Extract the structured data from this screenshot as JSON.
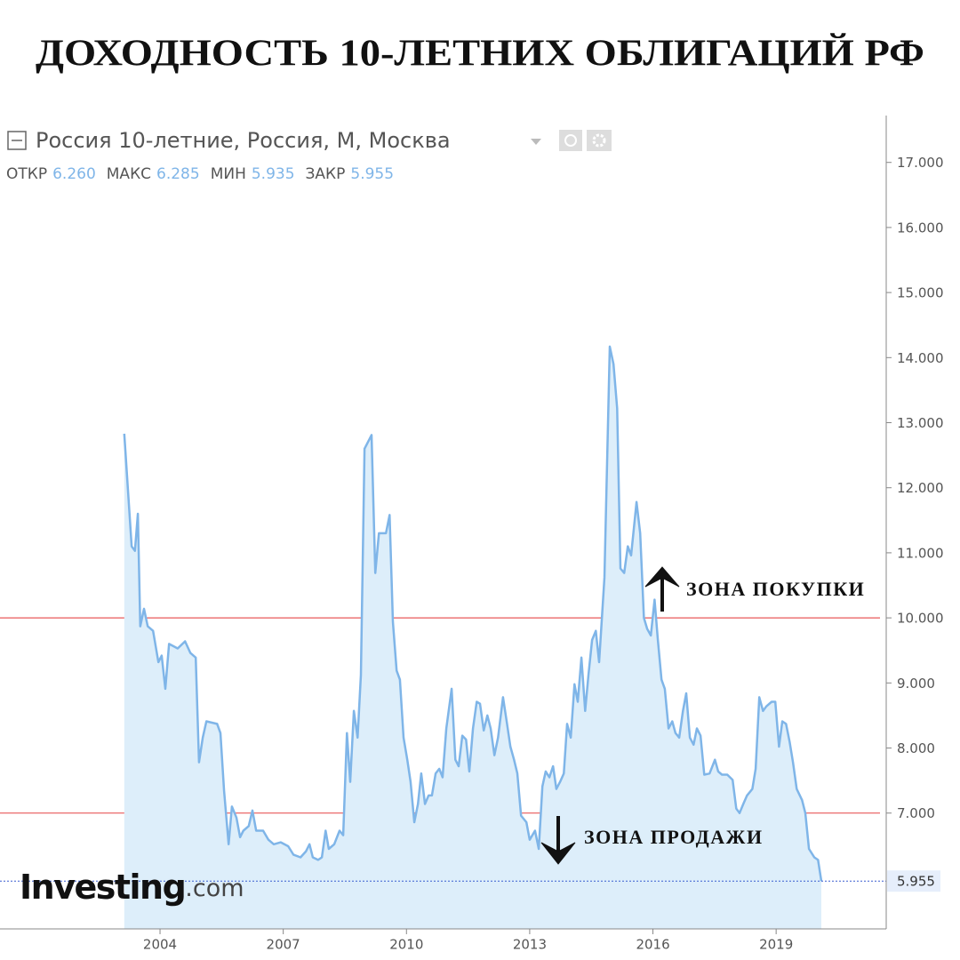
{
  "title": "ДОХОДНОСТЬ 10-ЛЕТНИХ ОБЛИГАЦИЙ РФ",
  "chart_data": {
    "type": "area",
    "ohlc": [
      {
        "label": "ОТКР",
        "value": "6.260"
      },
      {
        "label": "МАКС",
        "value": "6.285"
      },
      {
        "label": "МИН",
        "value": "5.935"
      },
      {
        "label": "ЗАКР",
        "value": "5.955"
      }
    ],
    "watermark": {
      "brand": "Investing",
      "suffix": ".com"
    },
    "xlim": [
      2000.104,
      2021.68
    ],
    "xticks": [
      2004,
      2007,
      2010,
      2013,
      2016,
      2019
    ],
    "ylim": [
      5.22,
      17.72
    ],
    "yticks": [
      {
        "value": 7,
        "label": "7.000"
      },
      {
        "value": 8,
        "label": "8.000"
      },
      {
        "value": 9,
        "label": "9.000"
      },
      {
        "value": 10,
        "label": "10.000"
      },
      {
        "value": 11,
        "label": "11.000"
      },
      {
        "value": 12,
        "label": "12.000"
      },
      {
        "value": 13,
        "label": "13.000"
      },
      {
        "value": 14,
        "label": "14.000"
      },
      {
        "value": 15,
        "label": "15.000"
      },
      {
        "value": 16,
        "label": "16.000"
      },
      {
        "value": 17,
        "label": "17.000"
      }
    ],
    "reference_lines": [
      {
        "value": 10,
        "color": "#e8595a",
        "annotation": "ЗОНА ПОКУПКИ"
      },
      {
        "value": 7,
        "color": "#e8595a",
        "annotation": "ЗОНА ПРОДАЖИ"
      }
    ],
    "series": [
      {
        "name": "Россия 10-летние, Россия, М, Москва",
        "color": "#7fb5e8",
        "fill": "#ddeefa",
        "x": [
          2003.13,
          2003.31,
          2003.39,
          2003.46,
          2003.52,
          2003.61,
          2003.7,
          2003.83,
          2003.96,
          2004.04,
          2004.13,
          2004.22,
          2004.43,
          2004.61,
          2004.74,
          2004.87,
          2004.95,
          2005.04,
          2005.13,
          2005.39,
          2005.47,
          2005.56,
          2005.67,
          2005.75,
          2005.86,
          2005.95,
          2006.03,
          2006.16,
          2006.25,
          2006.34,
          2006.51,
          2006.64,
          2006.77,
          2006.94,
          2007.12,
          2007.25,
          2007.42,
          2007.55,
          2007.64,
          2007.72,
          2007.85,
          2007.94,
          2008.03,
          2008.11,
          2008.24,
          2008.37,
          2008.46,
          2008.55,
          2008.63,
          2008.72,
          2008.81,
          2008.89,
          2008.98,
          2009.15,
          2009.24,
          2009.33,
          2009.5,
          2009.59,
          2009.67,
          2009.76,
          2009.84,
          2009.93,
          2010.02,
          2010.1,
          2010.19,
          2010.28,
          2010.36,
          2010.45,
          2010.54,
          2010.62,
          2010.71,
          2010.8,
          2010.88,
          2010.97,
          2011.1,
          2011.19,
          2011.27,
          2011.36,
          2011.45,
          2011.53,
          2011.62,
          2011.71,
          2011.79,
          2011.88,
          2011.97,
          2012.05,
          2012.14,
          2012.23,
          2012.35,
          2012.44,
          2012.53,
          2012.62,
          2012.7,
          2012.79,
          2012.92,
          2013.0,
          2013.13,
          2013.22,
          2013.31,
          2013.39,
          2013.48,
          2013.57,
          2013.65,
          2013.74,
          2013.83,
          2013.91,
          2014.0,
          2014.09,
          2014.17,
          2014.26,
          2014.35,
          2014.43,
          2014.52,
          2014.61,
          2014.69,
          2014.82,
          2014.95,
          2015.04,
          2015.13,
          2015.21,
          2015.3,
          2015.39,
          2015.47,
          2015.6,
          2015.69,
          2015.78,
          2015.86,
          2015.95,
          2016.04,
          2016.12,
          2016.21,
          2016.29,
          2016.38,
          2016.47,
          2016.55,
          2016.64,
          2016.73,
          2016.81,
          2016.9,
          2016.99,
          2017.07,
          2017.16,
          2017.25,
          2017.38,
          2017.51,
          2017.59,
          2017.68,
          2017.81,
          2017.94,
          2018.03,
          2018.11,
          2018.2,
          2018.29,
          2018.42,
          2018.5,
          2018.59,
          2018.68,
          2018.76,
          2018.89,
          2018.98,
          2019.07,
          2019.15,
          2019.24,
          2019.33,
          2019.41,
          2019.5,
          2019.63,
          2019.71,
          2019.8,
          2019.93,
          2020.02,
          2020.1
        ],
        "values": [
          12.83,
          11.1,
          11.03,
          11.6,
          9.87,
          10.14,
          9.87,
          9.8,
          9.32,
          9.42,
          8.91,
          9.6,
          9.53,
          9.64,
          9.46,
          9.39,
          7.78,
          8.16,
          8.41,
          8.37,
          8.23,
          7.34,
          6.52,
          7.1,
          6.93,
          6.63,
          6.73,
          6.8,
          7.04,
          6.73,
          6.73,
          6.59,
          6.52,
          6.55,
          6.49,
          6.36,
          6.32,
          6.41,
          6.52,
          6.32,
          6.28,
          6.32,
          6.73,
          6.45,
          6.52,
          6.73,
          6.66,
          8.23,
          7.48,
          8.57,
          8.16,
          9.12,
          12.6,
          12.81,
          10.69,
          11.3,
          11.3,
          11.58,
          9.94,
          9.19,
          9.05,
          8.16,
          7.82,
          7.48,
          6.86,
          7.14,
          7.61,
          7.14,
          7.27,
          7.27,
          7.61,
          7.68,
          7.55,
          8.3,
          8.91,
          7.82,
          7.72,
          8.19,
          8.13,
          7.64,
          8.3,
          8.71,
          8.68,
          8.27,
          8.5,
          8.3,
          7.89,
          8.16,
          8.78,
          8.41,
          8.02,
          7.82,
          7.61,
          6.96,
          6.86,
          6.59,
          6.73,
          6.45,
          7.41,
          7.64,
          7.55,
          7.72,
          7.37,
          7.48,
          7.61,
          8.37,
          8.16,
          8.98,
          8.71,
          9.39,
          8.57,
          9.12,
          9.66,
          9.8,
          9.32,
          10.62,
          14.17,
          13.9,
          13.22,
          10.76,
          10.69,
          11.1,
          10.96,
          11.78,
          11.3,
          10.0,
          9.83,
          9.73,
          10.28,
          9.66,
          9.05,
          8.91,
          8.3,
          8.41,
          8.23,
          8.16,
          8.57,
          8.84,
          8.16,
          8.05,
          8.3,
          8.19,
          7.59,
          7.61,
          7.82,
          7.64,
          7.59,
          7.59,
          7.51,
          7.07,
          7.0,
          7.14,
          7.27,
          7.37,
          7.68,
          8.78,
          8.57,
          8.64,
          8.71,
          8.71,
          8.02,
          8.41,
          8.37,
          8.09,
          7.78,
          7.37,
          7.2,
          7.0,
          6.45,
          6.32,
          6.28,
          5.955
        ]
      }
    ]
  }
}
